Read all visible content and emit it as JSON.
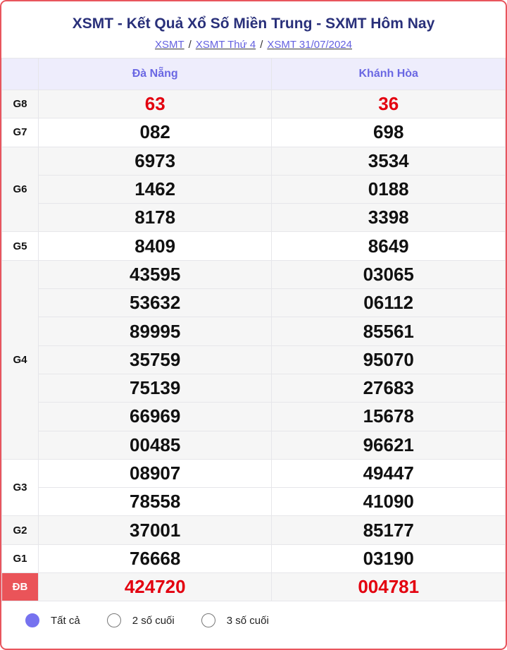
{
  "title": "XSMT - Kết Quả Xổ Số Miền Trung - SXMT Hôm Nay",
  "breadcrumb": [
    "XSMT",
    "XSMT Thứ 4",
    "XSMT 31/07/2024"
  ],
  "provinces": [
    "Đà Nẵng",
    "Khánh Hòa"
  ],
  "prizes": [
    {
      "label": "G8",
      "red": true,
      "values": [
        [
          "63"
        ],
        [
          "36"
        ]
      ]
    },
    {
      "label": "G7",
      "values": [
        [
          "082"
        ],
        [
          "698"
        ]
      ]
    },
    {
      "label": "G6",
      "values": [
        [
          "6973",
          "1462",
          "8178"
        ],
        [
          "3534",
          "0188",
          "3398"
        ]
      ]
    },
    {
      "label": "G5",
      "values": [
        [
          "8409"
        ],
        [
          "8649"
        ]
      ]
    },
    {
      "label": "G4",
      "values": [
        [
          "43595",
          "53632",
          "89995",
          "35759",
          "75139",
          "66969",
          "00485"
        ],
        [
          "03065",
          "06112",
          "85561",
          "95070",
          "27683",
          "15678",
          "96621"
        ]
      ]
    },
    {
      "label": "G3",
      "values": [
        [
          "08907",
          "78558"
        ],
        [
          "49447",
          "41090"
        ]
      ]
    },
    {
      "label": "G2",
      "values": [
        [
          "37001"
        ],
        [
          "85177"
        ]
      ]
    },
    {
      "label": "G1",
      "values": [
        [
          "76668"
        ],
        [
          "03190"
        ]
      ]
    },
    {
      "label": "ĐB",
      "red": true,
      "special": true,
      "values": [
        [
          "424720"
        ],
        [
          "004781"
        ]
      ]
    }
  ],
  "options": [
    {
      "label": "Tất cả",
      "selected": true
    },
    {
      "label": "2 số cuối",
      "selected": false
    },
    {
      "label": "3 số cuối",
      "selected": false
    }
  ],
  "colors": {
    "accent": "#6a67e3",
    "title": "#29307a",
    "red": "#e3000f",
    "border": "#e8555d"
  }
}
